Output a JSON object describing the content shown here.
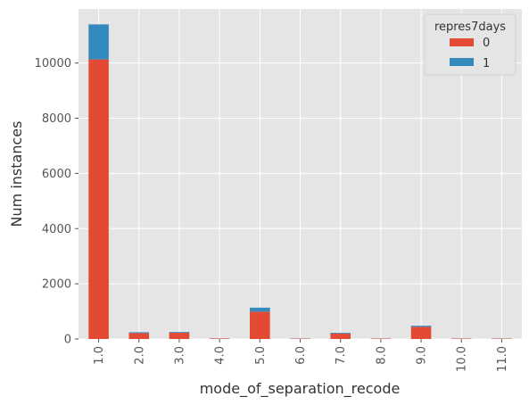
{
  "chart_data": {
    "type": "bar",
    "stacked": true,
    "title": "",
    "xlabel": "mode_of_separation_recode",
    "ylabel": "Num instances",
    "categories": [
      "1.0",
      "2.0",
      "3.0",
      "4.0",
      "5.0",
      "6.0",
      "7.0",
      "8.0",
      "9.0",
      "10.0",
      "11.0"
    ],
    "series": [
      {
        "name": "0",
        "color": "#E24A33",
        "values": [
          10130,
          215,
          225,
          18,
          990,
          15,
          195,
          15,
          440,
          15,
          15
        ]
      },
      {
        "name": "1",
        "color": "#348ABD",
        "values": [
          1270,
          30,
          28,
          3,
          145,
          3,
          28,
          3,
          40,
          3,
          3
        ]
      }
    ],
    "ylim": [
      0,
      11960
    ],
    "yticks": [
      0,
      2000,
      4000,
      6000,
      8000,
      10000
    ],
    "grid": true,
    "legend": {
      "title": "repres7days",
      "position": "top-right"
    },
    "style": {
      "background": "#E5E5E5",
      "grid_color": "#FFFFFF"
    }
  }
}
